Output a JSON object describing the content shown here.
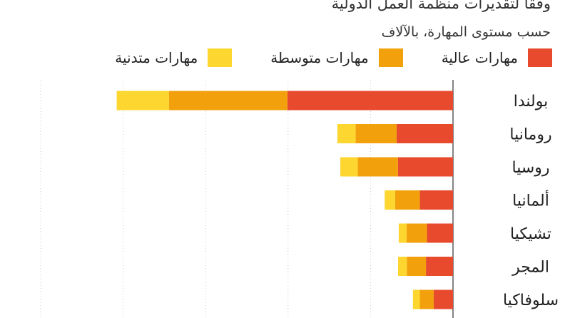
{
  "subtitle_lines": [
    "وفقا لتقديرات منظمة العمل الدولية",
    "حسب مستوى المهارة، بالآلاف"
  ],
  "colors": {
    "high": "#e84a2e",
    "medium": "#f2a10d",
    "low": "#fdd62f",
    "grid": "#cccccc",
    "axis": "#333333"
  },
  "chart_data": {
    "type": "bar",
    "orientation": "horizontal",
    "stacked": true,
    "categories": [
      "بولندا",
      "رومانيا",
      "روسيا",
      "ألمانيا",
      "تشيكيا",
      "المجر",
      "سلوفاكيا"
    ],
    "series": [
      {
        "name": "مهارات عالية",
        "color": "#e84a2e",
        "values": [
          1004,
          342,
          334,
          201,
          158,
          164,
          117
        ]
      },
      {
        "name": "مهارات متوسطة",
        "color": "#f2a10d",
        "values": [
          718,
          249,
          244,
          150,
          123,
          116,
          84
        ]
      },
      {
        "name": "مهارات متدنية",
        "color": "#fdd62f",
        "values": [
          317,
          110,
          105,
          63,
          48,
          53,
          42
        ]
      }
    ],
    "xlim": [
      0,
      2500
    ],
    "grid": true,
    "legend": "top"
  }
}
